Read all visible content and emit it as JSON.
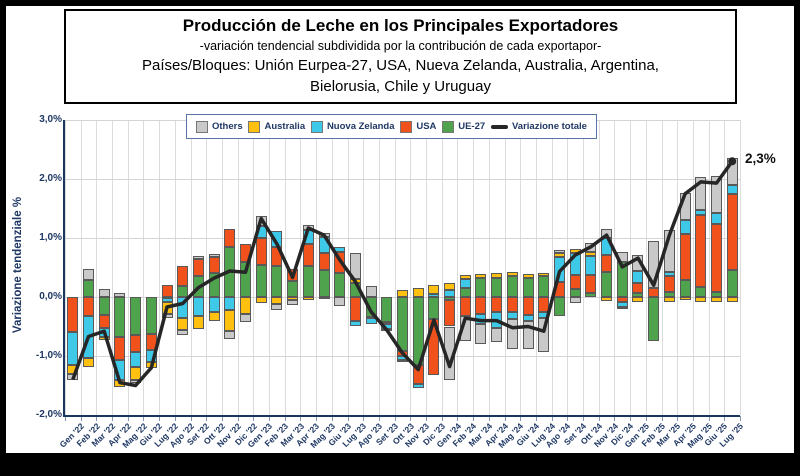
{
  "title": {
    "line1": "Producción de Leche en los Principales Exportadores",
    "line2": "-variación tendencial subdividida por la contribución de cada exportapor-",
    "line3": "Países/Bloques: Unión Eurpea-27, USA, Nueva Zelanda, Australia, Argentina,",
    "line4": "Bielorusia, Chile y Uruguay"
  },
  "legend": {
    "items": [
      {
        "label": "Others",
        "key": "others"
      },
      {
        "label": "Australia",
        "key": "aus"
      },
      {
        "label": "Nuova Zelanda",
        "key": "nz"
      },
      {
        "label": "USA",
        "key": "usa"
      },
      {
        "label": "UE-27",
        "key": "ue27"
      },
      {
        "label": "Variazione totale",
        "key": "line"
      }
    ]
  },
  "chart_data": {
    "type": "bar",
    "stacked": true,
    "unit": "%",
    "ylabel": "Variazione tendenziale %",
    "ylim": [
      -2,
      3
    ],
    "grid": true,
    "legend_position": "top",
    "end_label": "2,3%",
    "yticks": [
      {
        "label": "3,0%",
        "v": 3
      },
      {
        "label": "2,0%",
        "v": 2
      },
      {
        "label": "1,0%",
        "v": 1
      },
      {
        "label": "0,0%",
        "v": 0
      },
      {
        "label": "-1,0%",
        "v": -1
      },
      {
        "label": "-2,0%",
        "v": -2
      }
    ],
    "categories": [
      "Gen '22",
      "Feb '22",
      "Mar '22",
      "Apr '22",
      "Mag '22",
      "Giu '22",
      "Lug '22",
      "Ago '22",
      "Set '22",
      "Ott '22",
      "Nov '22",
      "Dic '22",
      "Gen '23",
      "Feb '23",
      "Mar '23",
      "Apr '23",
      "Mag '23",
      "Giu '23",
      "Lug '23",
      "Ago '23",
      "Set '23",
      "Ott '23",
      "Nov '23",
      "Dic '23",
      "Gen '24",
      "Feb '24",
      "Mar '24",
      "Apr '24",
      "Mag '24",
      "Giu '24",
      "Lug '24",
      "Ago '24",
      "Set '24",
      "Ott '24",
      "Nov '24",
      "Dic '24",
      "Gen '25",
      "Feb '25",
      "Mar '25",
      "Apr '25",
      "Mag '25",
      "Giu '25",
      "Lug '25"
    ],
    "series": [
      {
        "name": "UE-27",
        "key": "ue27",
        "color": "#4FA34D",
        "values": [
          0.0,
          0.28,
          -0.3,
          -0.68,
          -0.65,
          -0.62,
          -0.02,
          0.19,
          0.35,
          0.4,
          0.85,
          0.6,
          0.55,
          0.52,
          0.27,
          0.52,
          0.46,
          0.4,
          0.24,
          -0.34,
          -0.42,
          -0.92,
          -1.15,
          -0.38,
          -0.05,
          0.16,
          0.32,
          0.33,
          0.35,
          0.33,
          0.35,
          -0.33,
          0.13,
          0.06,
          0.43,
          0.6,
          0.06,
          -0.75,
          0.08,
          0.28,
          0.17,
          0.08,
          0.45
        ]
      },
      {
        "name": "USA",
        "key": "usa",
        "color": "#F1511B",
        "values": [
          -0.6,
          -0.33,
          -0.23,
          -0.38,
          -0.28,
          -0.27,
          0.2,
          0.34,
          0.3,
          0.28,
          0.31,
          0.3,
          0.45,
          0.33,
          0.21,
          0.37,
          0.29,
          0.37,
          -0.4,
          -0.02,
          -0.04,
          -0.08,
          -0.32,
          -0.95,
          -0.45,
          -0.32,
          -0.29,
          -0.25,
          -0.26,
          -0.3,
          -0.25,
          0.25,
          0.25,
          0.31,
          0.29,
          -0.08,
          0.18,
          0.15,
          0.28,
          0.78,
          1.22,
          1.15,
          1.3
        ]
      },
      {
        "name": "Nuova Zelanda",
        "key": "nz",
        "color": "#3EC9E9",
        "values": [
          -0.55,
          -0.7,
          -0.15,
          -0.35,
          -0.26,
          -0.21,
          -0.06,
          -0.36,
          -0.33,
          -0.25,
          -0.22,
          0.0,
          0.2,
          0.27,
          0.0,
          0.25,
          0.27,
          0.07,
          -0.09,
          -0.1,
          -0.08,
          -0.06,
          -0.08,
          0.05,
          0.12,
          0.14,
          -0.17,
          -0.27,
          -0.11,
          -0.1,
          -0.1,
          0.42,
          0.36,
          0.33,
          0.28,
          -0.09,
          0.2,
          0.0,
          0.06,
          0.25,
          0.09,
          0.2,
          0.15
        ]
      },
      {
        "name": "Australia",
        "key": "aus",
        "color": "#FFC010",
        "values": [
          -0.15,
          -0.15,
          -0.05,
          -0.12,
          -0.22,
          -0.1,
          -0.2,
          -0.2,
          -0.21,
          -0.16,
          -0.36,
          -0.29,
          -0.1,
          -0.12,
          -0.05,
          -0.05,
          -0.04,
          0.0,
          0.06,
          0.0,
          -0.02,
          0.12,
          0.15,
          0.16,
          0.12,
          0.08,
          0.07,
          0.07,
          0.07,
          0.06,
          0.06,
          0.07,
          0.07,
          0.07,
          -0.07,
          -0.04,
          -0.08,
          0.0,
          -0.09,
          -0.05,
          -0.08,
          -0.09,
          -0.08
        ]
      },
      {
        "name": "Others",
        "key": "others",
        "color": "#C9C9C9",
        "values": [
          -0.1,
          0.2,
          0.13,
          0.07,
          -0.05,
          0.0,
          -0.07,
          -0.08,
          0.05,
          0.05,
          -0.14,
          -0.13,
          0.17,
          -0.1,
          -0.08,
          0.08,
          0.07,
          -0.16,
          0.45,
          0.18,
          0.0,
          -0.04,
          0.0,
          0.0,
          -0.9,
          -0.43,
          -0.34,
          -0.24,
          -0.51,
          -0.48,
          -0.58,
          0.05,
          -0.1,
          0.14,
          0.16,
          0.16,
          0.28,
          0.8,
          0.72,
          0.45,
          0.55,
          0.62,
          0.45
        ]
      }
    ],
    "line_series": {
      "name": "Variazione totale",
      "color": "#262626",
      "values": [
        -1.4,
        -0.67,
        -0.58,
        -1.45,
        -1.5,
        -1.2,
        -0.17,
        -0.11,
        0.16,
        0.32,
        0.44,
        0.42,
        1.33,
        0.9,
        0.33,
        1.17,
        1.05,
        0.63,
        0.26,
        -0.25,
        -0.56,
        -0.95,
        -1.23,
        -0.39,
        -1.18,
        -0.36,
        -0.4,
        -0.4,
        -0.52,
        -0.5,
        -0.58,
        0.43,
        0.71,
        0.85,
        1.05,
        0.51,
        0.66,
        0.2,
        1.05,
        1.75,
        1.95,
        1.93,
        2.3
      ]
    }
  }
}
